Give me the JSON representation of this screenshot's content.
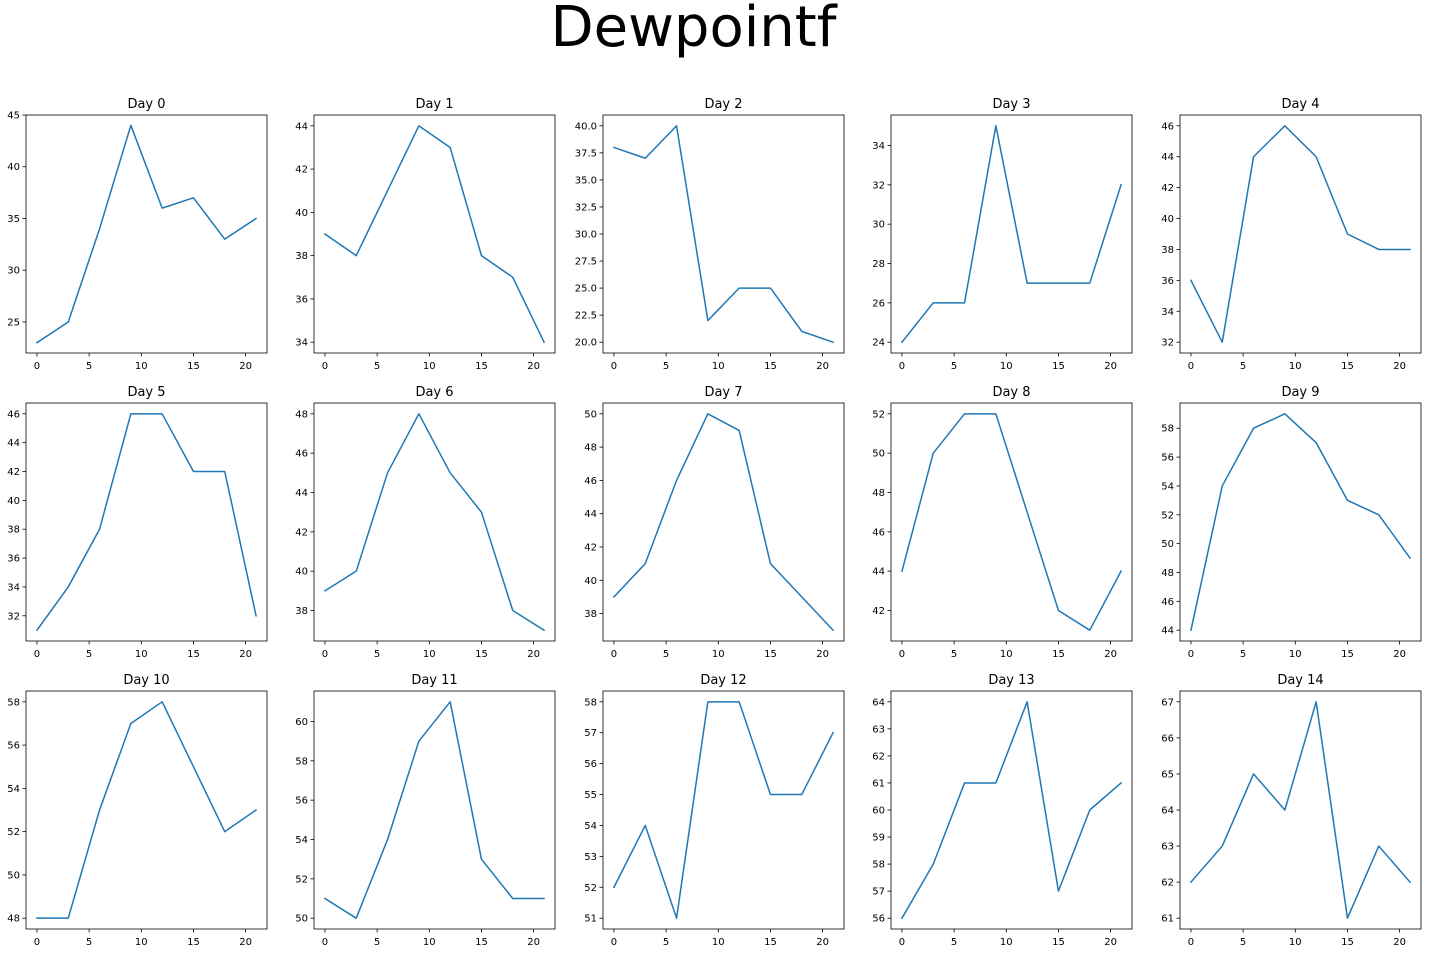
{
  "figure": {
    "title": "Dewpointf"
  },
  "chart_data": [
    {
      "type": "line",
      "title": "Day 0",
      "x": [
        0,
        3,
        6,
        9,
        12,
        15,
        18,
        21
      ],
      "y": [
        23,
        25,
        34,
        44,
        36,
        37,
        33,
        35
      ],
      "ylim": [
        22.0,
        45.0
      ],
      "yticks": [
        25,
        30,
        35,
        40,
        45
      ],
      "xticks": [
        0,
        5,
        10,
        15,
        20
      ],
      "color": "#1f77b4"
    },
    {
      "type": "line",
      "title": "Day 1",
      "x": [
        0,
        3,
        6,
        9,
        12,
        15,
        18,
        21
      ],
      "y": [
        39,
        38,
        41,
        44,
        43,
        38,
        37,
        34
      ],
      "ylim": [
        33.5,
        44.5
      ],
      "yticks": [
        34,
        36,
        38,
        40,
        42,
        44
      ],
      "xticks": [
        0,
        5,
        10,
        15,
        20
      ],
      "color": "#1f77b4"
    },
    {
      "type": "line",
      "title": "Day 2",
      "x": [
        0,
        3,
        6,
        9,
        12,
        15,
        18,
        21
      ],
      "y": [
        38,
        37,
        40,
        22,
        25,
        25,
        21,
        20
      ],
      "ylim": [
        19.0,
        41.0
      ],
      "yticks": [
        20.0,
        22.5,
        25.0,
        27.5,
        30.0,
        32.5,
        35.0,
        37.5,
        40.0
      ],
      "xticks": [
        0,
        5,
        10,
        15,
        20
      ],
      "color": "#1f77b4"
    },
    {
      "type": "line",
      "title": "Day 3",
      "x": [
        0,
        3,
        6,
        9,
        12,
        15,
        18,
        21
      ],
      "y": [
        24,
        26,
        26,
        35,
        27,
        27,
        27,
        32
      ],
      "ylim": [
        23.45,
        35.55
      ],
      "yticks": [
        24,
        26,
        28,
        30,
        32,
        34
      ],
      "xticks": [
        0,
        5,
        10,
        15,
        20
      ],
      "color": "#1f77b4"
    },
    {
      "type": "line",
      "title": "Day 4",
      "x": [
        0,
        3,
        6,
        9,
        12,
        15,
        18,
        21
      ],
      "y": [
        36,
        32,
        44,
        46,
        44,
        39,
        38,
        38
      ],
      "ylim": [
        31.3,
        46.7
      ],
      "yticks": [
        32,
        34,
        36,
        38,
        40,
        42,
        44,
        46
      ],
      "xticks": [
        0,
        5,
        10,
        15,
        20
      ],
      "color": "#1f77b4"
    },
    {
      "type": "line",
      "title": "Day 5",
      "x": [
        0,
        3,
        6,
        9,
        12,
        15,
        18,
        21
      ],
      "y": [
        31,
        34,
        38,
        46,
        46,
        42,
        42,
        32
      ],
      "ylim": [
        30.25,
        46.75
      ],
      "yticks": [
        32,
        34,
        36,
        38,
        40,
        42,
        44,
        46
      ],
      "xticks": [
        0,
        5,
        10,
        15,
        20
      ],
      "color": "#1f77b4"
    },
    {
      "type": "line",
      "title": "Day 6",
      "x": [
        0,
        3,
        6,
        9,
        12,
        15,
        18,
        21
      ],
      "y": [
        39,
        40,
        45,
        48,
        45,
        43,
        38,
        37
      ],
      "ylim": [
        36.45,
        48.55
      ],
      "yticks": [
        38,
        40,
        42,
        44,
        46,
        48
      ],
      "xticks": [
        0,
        5,
        10,
        15,
        20
      ],
      "color": "#1f77b4"
    },
    {
      "type": "line",
      "title": "Day 7",
      "x": [
        0,
        3,
        6,
        9,
        12,
        15,
        18,
        21
      ],
      "y": [
        39,
        41,
        46,
        50,
        49,
        41,
        39,
        37
      ],
      "ylim": [
        36.35,
        50.65
      ],
      "yticks": [
        38,
        40,
        42,
        44,
        46,
        48,
        50
      ],
      "xticks": [
        0,
        5,
        10,
        15,
        20
      ],
      "color": "#1f77b4"
    },
    {
      "type": "line",
      "title": "Day 8",
      "x": [
        0,
        3,
        6,
        9,
        12,
        15,
        18,
        21
      ],
      "y": [
        44,
        50,
        52,
        52,
        47,
        42,
        41,
        44
      ],
      "ylim": [
        40.45,
        52.55
      ],
      "yticks": [
        42,
        44,
        46,
        48,
        50,
        52
      ],
      "xticks": [
        0,
        5,
        10,
        15,
        20
      ],
      "color": "#1f77b4"
    },
    {
      "type": "line",
      "title": "Day 9",
      "x": [
        0,
        3,
        6,
        9,
        12,
        15,
        18,
        21
      ],
      "y": [
        44,
        54,
        58,
        59,
        57,
        53,
        52,
        49
      ],
      "ylim": [
        43.25,
        59.75
      ],
      "yticks": [
        44,
        46,
        48,
        50,
        52,
        54,
        56,
        58
      ],
      "xticks": [
        0,
        5,
        10,
        15,
        20
      ],
      "color": "#1f77b4"
    },
    {
      "type": "line",
      "title": "Day 10",
      "x": [
        0,
        3,
        6,
        9,
        12,
        15,
        18,
        21
      ],
      "y": [
        48,
        48,
        53,
        57,
        58,
        55,
        52,
        53
      ],
      "ylim": [
        47.5,
        58.5
      ],
      "yticks": [
        48,
        50,
        52,
        54,
        56,
        58
      ],
      "xticks": [
        0,
        5,
        10,
        15,
        20
      ],
      "color": "#1f77b4"
    },
    {
      "type": "line",
      "title": "Day 11",
      "x": [
        0,
        3,
        6,
        9,
        12,
        15,
        18,
        21
      ],
      "y": [
        51,
        50,
        54,
        59,
        61,
        53,
        51,
        51
      ],
      "ylim": [
        49.45,
        61.55
      ],
      "yticks": [
        50,
        52,
        54,
        56,
        58,
        60
      ],
      "xticks": [
        0,
        5,
        10,
        15,
        20
      ],
      "color": "#1f77b4"
    },
    {
      "type": "line",
      "title": "Day 12",
      "x": [
        0,
        3,
        6,
        9,
        12,
        15,
        18,
        21
      ],
      "y": [
        52,
        54,
        51,
        58,
        58,
        55,
        55,
        57
      ],
      "ylim": [
        50.65,
        58.35
      ],
      "yticks": [
        51,
        52,
        53,
        54,
        55,
        56,
        57,
        58
      ],
      "xticks": [
        0,
        5,
        10,
        15,
        20
      ],
      "color": "#1f77b4"
    },
    {
      "type": "line",
      "title": "Day 13",
      "x": [
        0,
        3,
        6,
        9,
        12,
        15,
        18,
        21
      ],
      "y": [
        56,
        58,
        61,
        61,
        64,
        57,
        60,
        61
      ],
      "ylim": [
        55.6,
        64.4
      ],
      "yticks": [
        56,
        57,
        58,
        59,
        60,
        61,
        62,
        63,
        64
      ],
      "xticks": [
        0,
        5,
        10,
        15,
        20
      ],
      "color": "#1f77b4"
    },
    {
      "type": "line",
      "title": "Day 14",
      "x": [
        0,
        3,
        6,
        9,
        12,
        15,
        18,
        21
      ],
      "y": [
        62,
        63,
        65,
        64,
        67,
        61,
        63,
        62
      ],
      "ylim": [
        60.7,
        67.3
      ],
      "yticks": [
        61,
        62,
        63,
        64,
        65,
        66,
        67
      ],
      "xticks": [
        0,
        5,
        10,
        15,
        20
      ],
      "color": "#1f77b4"
    }
  ]
}
